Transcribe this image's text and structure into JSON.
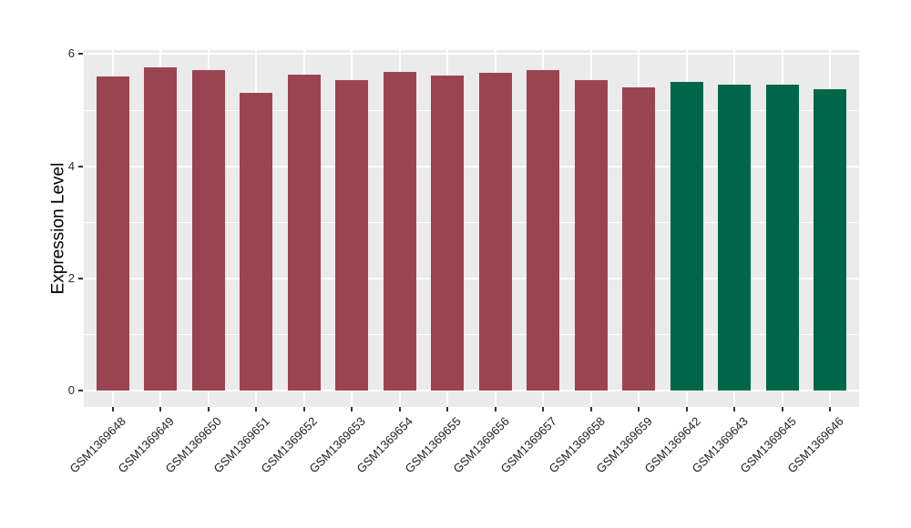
{
  "chart_data": {
    "type": "bar",
    "title": "",
    "xlabel": "",
    "ylabel": "Expression Level",
    "categories": [
      "GSM1369648",
      "GSM1369649",
      "GSM1369650",
      "GSM1369651",
      "GSM1369652",
      "GSM1369653",
      "GSM1369654",
      "GSM1369655",
      "GSM1369656",
      "GSM1369657",
      "GSM1369658",
      "GSM1369659",
      "GSM1369642",
      "GSM1369643",
      "GSM1369645",
      "GSM1369646"
    ],
    "values": [
      5.6,
      5.77,
      5.71,
      5.31,
      5.64,
      5.53,
      5.68,
      5.62,
      5.66,
      5.72,
      5.53,
      5.4,
      5.51,
      5.45,
      5.46,
      5.37
    ],
    "bar_colors": [
      "#9A4452",
      "#9A4452",
      "#9A4452",
      "#9A4452",
      "#9A4452",
      "#9A4452",
      "#9A4452",
      "#9A4452",
      "#9A4452",
      "#9A4452",
      "#9A4452",
      "#9A4452",
      "#00664A",
      "#00664A",
      "#00664A",
      "#00664A"
    ],
    "group_colors": {
      "group1": "#9A4452",
      "group2": "#00664A"
    },
    "yticks": [
      0,
      2,
      4,
      6
    ],
    "minor_yticks": [
      1,
      3,
      5
    ],
    "ylim": [
      0,
      6
    ],
    "grid": "on",
    "legend_position": "none",
    "panel_bg": "#EBEBEB",
    "grid_color": "#FFFFFF",
    "tick_color": "#333333"
  }
}
